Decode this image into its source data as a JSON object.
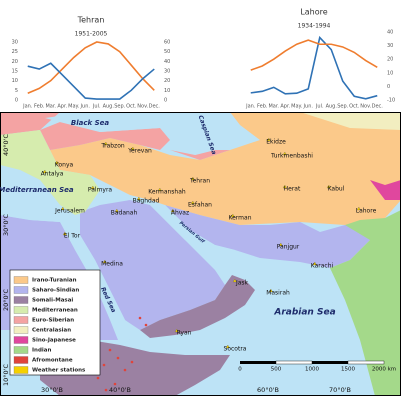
{
  "chart_data": [
    {
      "type": "line",
      "title": "Tehran",
      "subtitle": "1951-2005",
      "categories": [
        "Jan.",
        "Feb.",
        "Mar.",
        "Apr.",
        "May.",
        "Jun.",
        "Jul.",
        "Aug.",
        "Sep.",
        "Oct.",
        "Nov.",
        "Dec."
      ],
      "series": [
        {
          "color": "#ef7d2f",
          "values": [
            3.5,
            6,
            10,
            16,
            22,
            27,
            30,
            29,
            25,
            18,
            11,
            5
          ]
        },
        {
          "color": "#2f72b5",
          "axis": "y2",
          "values": [
            35,
            32,
            38,
            26,
            14,
            2,
            1,
            1,
            1,
            10,
            22,
            32
          ]
        }
      ],
      "ylim": [
        0,
        30
      ],
      "yticks": [
        0,
        5,
        10,
        15,
        20,
        25,
        30
      ],
      "y2lim": [
        0,
        60
      ],
      "y2ticks": [
        0,
        10,
        20,
        30,
        40,
        50,
        60
      ]
    },
    {
      "type": "line",
      "title": "Lahore",
      "subtitle": "1934-1994",
      "categories": [
        "Jan.",
        "Feb.",
        "Mar.",
        "Apr.",
        "May.",
        "Jun.",
        "Jul.",
        "Aug.",
        "Sep.",
        "Oct.",
        "Nov.",
        "Dec."
      ],
      "series": [
        {
          "color": "#2f72b5",
          "values": [
            23,
            28,
            41,
            20,
            22,
            36,
            202,
            163,
            61,
            12,
            4,
            14
          ]
        },
        {
          "color": "#ef7d2f",
          "axis": "y2",
          "values": [
            12,
            15,
            20,
            26,
            31,
            34,
            31,
            31,
            29,
            25,
            19,
            14
          ]
        }
      ],
      "ylim": [
        0,
        220
      ],
      "y2lim": [
        -10,
        40
      ],
      "y2ticks": [
        -10,
        0,
        10,
        20,
        30,
        40
      ]
    }
  ],
  "map": {
    "labels": [
      "Black Sea",
      "Caspian Sea",
      "Mediterranean Sea",
      "Persian Gulf",
      "Red Sea",
      "Arabian Sea",
      "Trabzon",
      "Yerevan",
      "Konya",
      "Antalya",
      "Ekidze",
      "Turkmenbashi",
      "Kabul",
      "Lahore",
      "Herat",
      "Tehran",
      "Kermanshah",
      "Baghdad",
      "Esfahan",
      "Palmyra",
      "Jerusalem",
      "Badanah",
      "Ahvaz",
      "El Tor",
      "Kerman",
      "Medina",
      "Jask",
      "Panjgur",
      "Karachi",
      "Masirah",
      "Ryan",
      "Socotra"
    ],
    "legend": {
      "items": [
        {
          "label": "Irano-Turanian",
          "color": "#fbc98a"
        },
        {
          "label": "Saharo-Sindian",
          "color": "#b3b5ee"
        },
        {
          "label": "Somali-Masai",
          "color": "#9b81a2"
        },
        {
          "label": "Mediterranean",
          "color": "#d6ecae"
        },
        {
          "label": "Euro-Siberian",
          "color": "#f4a3a3"
        },
        {
          "label": "Centralasian",
          "color": "#f2eec0"
        },
        {
          "label": "Sino-Japanese",
          "color": "#e0479e"
        },
        {
          "label": "Indian",
          "color": "#a4d98a"
        },
        {
          "label": "Afromontane",
          "color": "#e0443b"
        },
        {
          "label": "Weather stations",
          "color": "#f5d000"
        }
      ]
    },
    "lat_labels": [
      "40°0'C",
      "30°0'C",
      "20°0'C",
      "10°0'C"
    ],
    "lon_labels": [
      "30°0'B",
      "40°0'B",
      "60°0'B",
      "70°0'B"
    ],
    "scale_labels": [
      "0",
      "500",
      "1000",
      "1500",
      "2000 km"
    ]
  }
}
